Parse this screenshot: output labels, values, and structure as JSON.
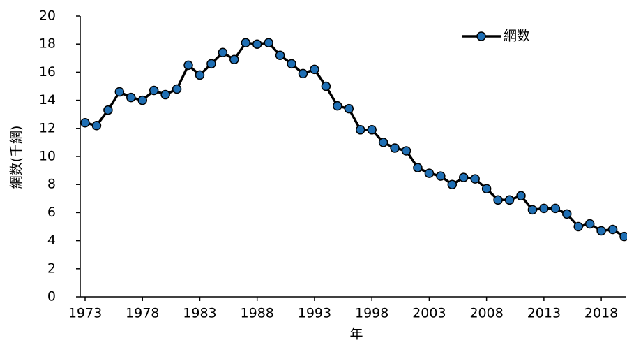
{
  "chart_data": {
    "type": "line",
    "y_label": "網数(千網)",
    "x_label": "年",
    "x": [
      1973,
      1974,
      1975,
      1976,
      1977,
      1978,
      1979,
      1980,
      1981,
      1982,
      1983,
      1984,
      1985,
      1986,
      1987,
      1988,
      1989,
      1990,
      1991,
      1992,
      1993,
      1994,
      1995,
      1996,
      1997,
      1998,
      1999,
      2000,
      2001,
      2002,
      2003,
      2004,
      2005,
      2006,
      2007,
      2008,
      2009,
      2010,
      2011,
      2012,
      2013,
      2014,
      2015,
      2016,
      2017,
      2018,
      2019,
      2020
    ],
    "series": [
      {
        "name": "網数",
        "color": "#1f6fb4",
        "values": [
          12.4,
          12.2,
          13.3,
          14.6,
          14.2,
          14.0,
          14.7,
          14.4,
          14.8,
          16.5,
          15.8,
          16.6,
          17.4,
          16.9,
          18.1,
          18.0,
          18.1,
          17.2,
          16.6,
          15.9,
          16.2,
          15.0,
          13.6,
          13.4,
          11.9,
          11.9,
          11.0,
          10.6,
          10.4,
          9.2,
          8.8,
          8.6,
          8.0,
          8.5,
          8.4,
          7.7,
          6.9,
          6.9,
          7.2,
          6.2,
          6.3,
          6.3,
          5.9,
          5.0,
          5.2,
          4.7,
          4.8,
          4.3
        ]
      }
    ],
    "xlim": [
      1973,
      2020
    ],
    "xticks": [
      1973,
      1978,
      1983,
      1988,
      1993,
      1998,
      2003,
      2008,
      2013,
      2018
    ],
    "ylim": [
      0,
      20
    ],
    "yticks": [
      0,
      2,
      4,
      6,
      8,
      10,
      12,
      14,
      16,
      18,
      20
    ],
    "legend": "top-right"
  }
}
